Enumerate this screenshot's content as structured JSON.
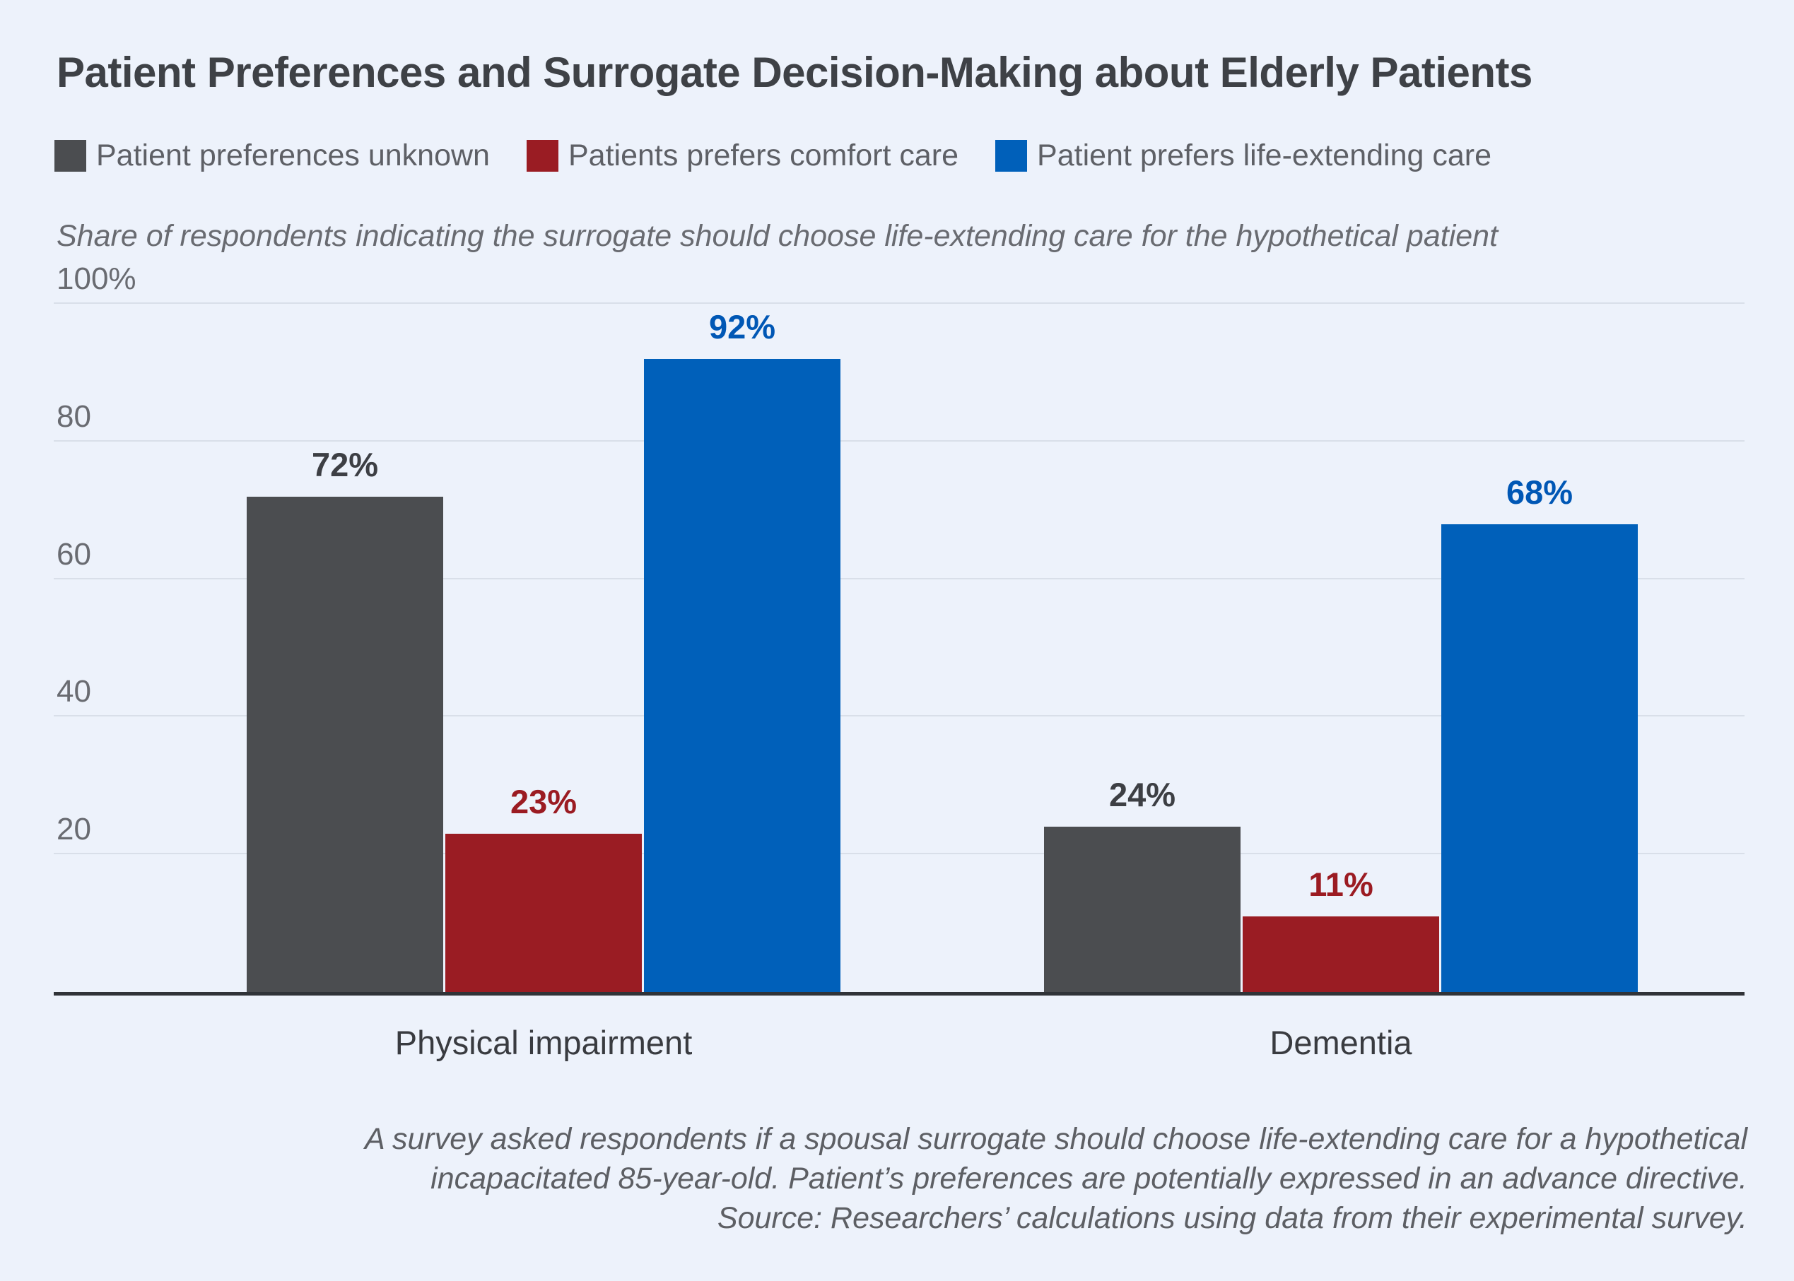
{
  "title": "Patient Preferences and Surrogate Decision-Making about Elderly Patients",
  "subtitle": "Share of respondents indicating the surrogate should choose life-extending care for the hypothetical patient",
  "legend": [
    {
      "label": "Patient preferences unknown",
      "color": "#4b4d50"
    },
    {
      "label": "Patients prefers comfort care",
      "color": "#9a1c23"
    },
    {
      "label": "Patient prefers life-extending care",
      "color": "#0060ba"
    }
  ],
  "chart_data": {
    "type": "bar",
    "categories": [
      "Physical impairment",
      "Dementia"
    ],
    "series": [
      {
        "name": "Patient preferences unknown",
        "color": "#4b4d50",
        "label_color": "#3d3f44",
        "values": [
          72,
          24
        ]
      },
      {
        "name": "Patients prefers comfort care",
        "color": "#9a1c23",
        "label_color": "#9b1b22",
        "values": [
          23,
          11
        ]
      },
      {
        "name": "Patient prefers life-extending care",
        "color": "#0060ba",
        "label_color": "#0057b5",
        "values": [
          92,
          68
        ]
      }
    ],
    "value_suffix": "%",
    "title": "Patient Preferences and Surrogate Decision-Making about Elderly Patients",
    "xlabel": "",
    "ylabel": "Share of respondents indicating the surrogate should choose life-extending care for the hypothetical patient",
    "ylim": [
      0,
      100
    ],
    "yticks": [
      {
        "value": 20,
        "label": "20"
      },
      {
        "value": 40,
        "label": "40"
      },
      {
        "value": 60,
        "label": "60"
      },
      {
        "value": 80,
        "label": "80"
      },
      {
        "value": 100,
        "label": "100%"
      }
    ],
    "grid": true,
    "legend_position": "top",
    "value_labels": true
  },
  "footer": {
    "lines": [
      "A survey asked respondents if a spousal surrogate should choose life-extending care for a hypothetical",
      "incapacitated 85-year-old. Patient’s preferences are potentially expressed in an advance directive.",
      "Source: Researchers’ calculations using data from their experimental survey."
    ]
  }
}
